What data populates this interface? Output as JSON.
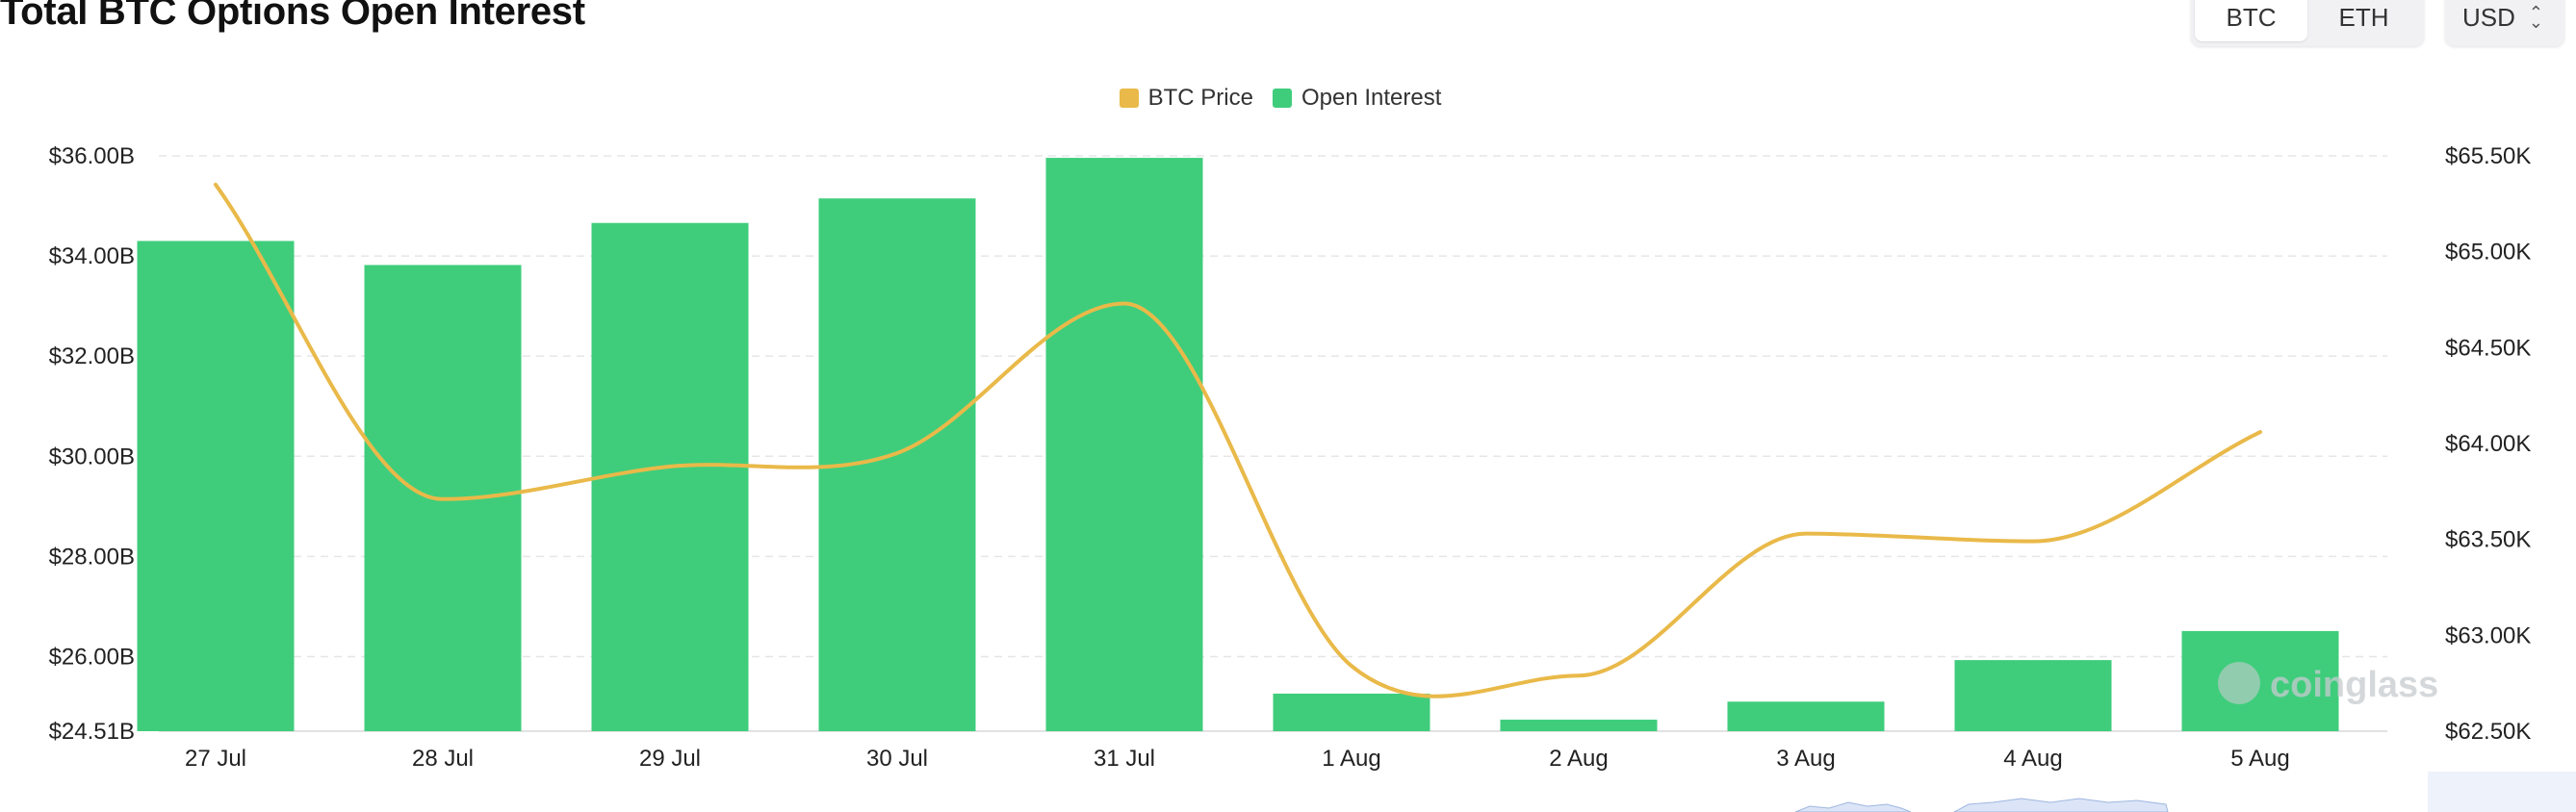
{
  "header": {
    "title": "Total BTC Options Open Interest",
    "coin_options": [
      "BTC",
      "ETH"
    ],
    "selected_coin": "BTC",
    "currency": "USD"
  },
  "legend": {
    "items": [
      {
        "label": "BTC Price",
        "color": "#e9b949"
      },
      {
        "label": "Open Interest",
        "color": "#3fcd7c"
      }
    ]
  },
  "watermark": "coinglass",
  "chart_data": {
    "type": "bar",
    "categories": [
      "27 Jul",
      "28 Jul",
      "29 Jul",
      "30 Jul",
      "31 Jul",
      "1 Aug",
      "2 Aug",
      "3 Aug",
      "4 Aug",
      "5 Aug"
    ],
    "series": [
      {
        "name": "Open Interest",
        "type": "bar",
        "axis": "left",
        "color": "#3fcd7c",
        "values": [
          34.3,
          33.82,
          34.66,
          35.15,
          35.96,
          25.26,
          24.74,
          25.1,
          25.93,
          26.51
        ]
      },
      {
        "name": "BTC Price",
        "type": "line",
        "axis": "right",
        "color": "#e9b949",
        "values": [
          65350,
          63710,
          63880,
          63950,
          64730,
          62840,
          62790,
          63530,
          63490,
          64060
        ]
      }
    ],
    "left_axis": {
      "ticks": [
        "$36.00B",
        "$34.00B",
        "$32.00B",
        "$30.00B",
        "$28.00B",
        "$26.00B",
        "$24.51B"
      ],
      "range": [
        24.51,
        36.0
      ]
    },
    "right_axis": {
      "ticks": [
        "$65.50K",
        "$65.00K",
        "$64.50K",
        "$64.00K",
        "$63.50K",
        "$63.00K",
        "$62.50K"
      ],
      "range": [
        62500,
        65500
      ]
    },
    "grid": true,
    "legend_position": "top-center"
  }
}
